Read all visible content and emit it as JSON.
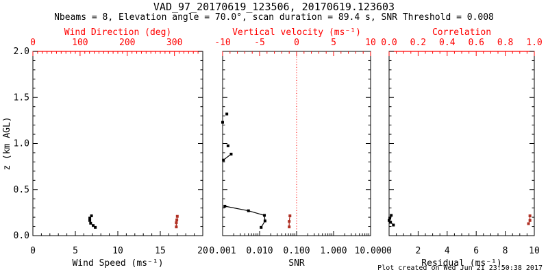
{
  "header": {
    "title": "VAD_97_20170619_123506, 20170619.123603",
    "subtitle": "Nbeams = 8, Elevation angle = 70.0°, scan duration = 89.4 s, SNR Threshold = 0.008"
  },
  "footer": {
    "created_note": "Plot created on Wed Jun 21 23:50:38 2017"
  },
  "colors": {
    "background": "#ffffff",
    "frame": "#000000",
    "accent_red": "#ff0000",
    "data_red": "#b03024",
    "data_black": "#000000"
  },
  "chart_data": {
    "type": "scatter",
    "grid": "off",
    "y_axis": {
      "label": "z (km AGL)",
      "min": 0,
      "max": 2,
      "major_ticks": [
        0,
        0.5,
        1,
        1.5,
        2
      ],
      "tick_labels": [
        "0.0",
        "0.5",
        "1.0",
        "1.5",
        "2.0"
      ],
      "minor_step": 0.1
    },
    "panels": [
      {
        "name": "wind-panel",
        "bottom_axis": {
          "label": "Wind Speed (ms⁻¹)",
          "scale": "linear",
          "min": 0,
          "max": 20,
          "major_ticks": [
            0,
            5,
            10,
            15,
            20
          ],
          "tick_labels": [
            "0",
            "5",
            "10",
            "15",
            "20"
          ],
          "minor_step": 1
        },
        "top_axis": {
          "label": "Wind Direction (deg)",
          "scale": "linear",
          "min": 0,
          "max": 360,
          "major_ticks": [
            0,
            100,
            200,
            300
          ],
          "tick_labels": [
            "0",
            "100",
            "200",
            "300"
          ],
          "minor_step": 10,
          "line_color": "accent"
        },
        "series": [
          {
            "name": "wind-speed",
            "axis": "bottom",
            "color": "black",
            "segments": [
              [
                [
                  6.9,
                  0.215
                ],
                [
                  6.7,
                  0.19
                ],
                [
                  6.7,
                  0.165
                ],
                [
                  6.8,
                  0.135
                ],
                [
                  7.1,
                  0.11
                ],
                [
                  7.35,
                  0.09
                ]
              ]
            ]
          },
          {
            "name": "wind-direction",
            "axis": "top",
            "color": "red",
            "segments": [
              [
                [
                  306,
                  0.21
                ],
                [
                  305,
                  0.17
                ],
                [
                  304,
                  0.14
                ],
                [
                  304,
                  0.095
                ]
              ]
            ]
          }
        ]
      },
      {
        "name": "snr-panel",
        "bottom_axis": {
          "label": "SNR",
          "scale": "log",
          "min": 0.001,
          "max": 10,
          "major_ticks": [
            0.001,
            0.01,
            0.1,
            1,
            10
          ],
          "tick_labels": [
            "0.001",
            "0.010",
            "0.100",
            "1.000",
            "10.000"
          ]
        },
        "top_axis": {
          "label": "Vertical velocity (ms⁻¹)",
          "scale": "linear",
          "min": -10,
          "max": 10,
          "major_ticks": [
            -10,
            -5,
            0,
            5,
            10
          ],
          "tick_labels": [
            "-10",
            "-5",
            "0",
            "5",
            "10"
          ],
          "minor_step": 1,
          "line_color": "frame"
        },
        "ref_lines": [
          {
            "axis": "top",
            "value": 0,
            "color": "accent",
            "style": "dotted"
          }
        ],
        "series": [
          {
            "name": "snr",
            "axis": "bottom",
            "color": "black",
            "segments": [
              [
                [
                  0.0013,
                  1.32
                ]
              ],
              [
                [
                  0.001,
                  1.23
                ]
              ],
              [
                [
                  0.0014,
                  0.975
                ]
              ],
              [
                [
                  0.0017,
                  0.885
                ],
                [
                  0.00105,
                  0.82
                ]
              ],
              [
                [
                  0.00115,
                  0.32
                ],
                [
                  0.005,
                  0.27
                ],
                [
                  0.0135,
                  0.22
                ],
                [
                  0.014,
                  0.16
                ],
                [
                  0.011,
                  0.09
                ]
              ]
            ]
          },
          {
            "name": "vertical-velocity",
            "axis": "top",
            "color": "red",
            "segments": [
              [
                [
                  -0.9,
                  0.215
                ],
                [
                  -1.0,
                  0.155
                ],
                [
                  -1.0,
                  0.095
                ]
              ]
            ]
          }
        ]
      },
      {
        "name": "residual-panel",
        "bottom_axis": {
          "label": "Residual (ms⁻¹)",
          "scale": "linear",
          "min": 0,
          "max": 10,
          "major_ticks": [
            0,
            2,
            4,
            6,
            8,
            10
          ],
          "tick_labels": [
            "0",
            "2",
            "4",
            "6",
            "8",
            "10"
          ],
          "minor_step": 0.5
        },
        "top_axis": {
          "label": "Correlation",
          "scale": "linear",
          "min": 0,
          "max": 1,
          "major_ticks": [
            0,
            0.2,
            0.4,
            0.6,
            0.8,
            1
          ],
          "tick_labels": [
            "0.0",
            "0.2",
            "0.4",
            "0.6",
            "0.8",
            "1.0"
          ],
          "minor_step": 0.05,
          "line_color": "accent"
        },
        "series": [
          {
            "name": "residual",
            "axis": "bottom",
            "color": "black",
            "segments": [
              [
                [
                  0.15,
                  0.22
                ],
                [
                  0.05,
                  0.19
                ],
                [
                  0.0,
                  0.165
                ],
                [
                  0.1,
                  0.145
                ],
                [
                  0.3,
                  0.115
                ]
              ]
            ]
          },
          {
            "name": "correlation",
            "axis": "top",
            "color": "red",
            "segments": [
              [
                [
                  0.97,
                  0.215
                ],
                [
                  0.97,
                  0.165
                ],
                [
                  0.96,
                  0.13
                ]
              ]
            ]
          }
        ]
      }
    ]
  }
}
